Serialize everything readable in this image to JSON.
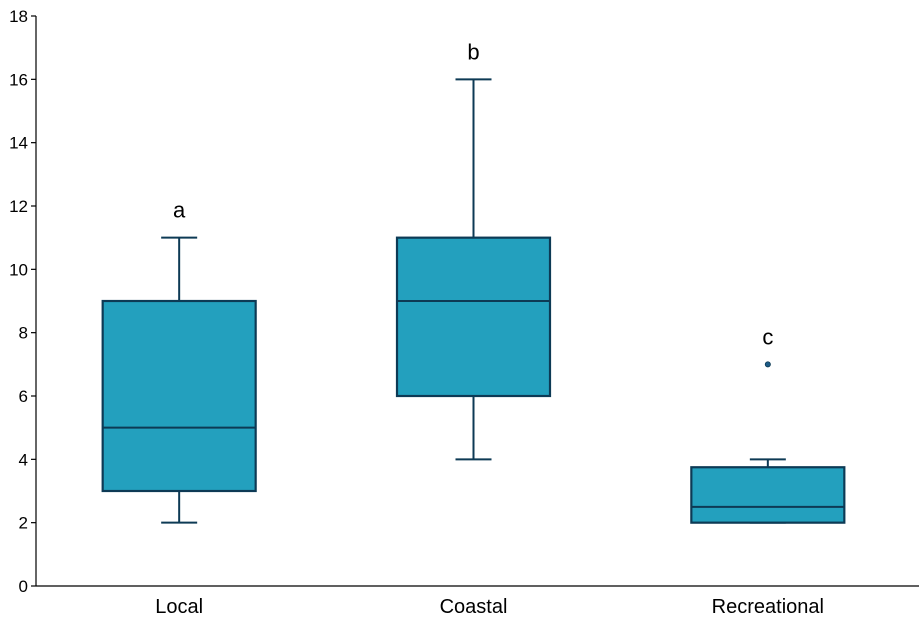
{
  "chart_data": {
    "type": "box",
    "title": "",
    "xlabel": "",
    "ylabel": "",
    "ylim": [
      0,
      18
    ],
    "yticks": [
      0,
      2,
      4,
      6,
      8,
      10,
      12,
      14,
      16,
      18
    ],
    "grid": false,
    "colors": {
      "box_fill": "#23A0BE",
      "box_stroke": "#0D3A55",
      "axis": "#000000"
    },
    "categories": [
      "Local",
      "Coastal",
      "Recreational"
    ],
    "boxes": [
      {
        "category": "Local",
        "min": 2,
        "q1": 3,
        "median": 5,
        "q3": 9,
        "max": 11,
        "outliers": [],
        "significance": "a"
      },
      {
        "category": "Coastal",
        "min": 4,
        "q1": 6,
        "median": 9,
        "q3": 11,
        "max": 16,
        "outliers": [],
        "significance": "b"
      },
      {
        "category": "Recreational",
        "min": 2,
        "q1": 2,
        "median": 2.5,
        "q3": 3.75,
        "max": 4,
        "outliers": [
          7
        ],
        "significance": "c"
      }
    ]
  }
}
